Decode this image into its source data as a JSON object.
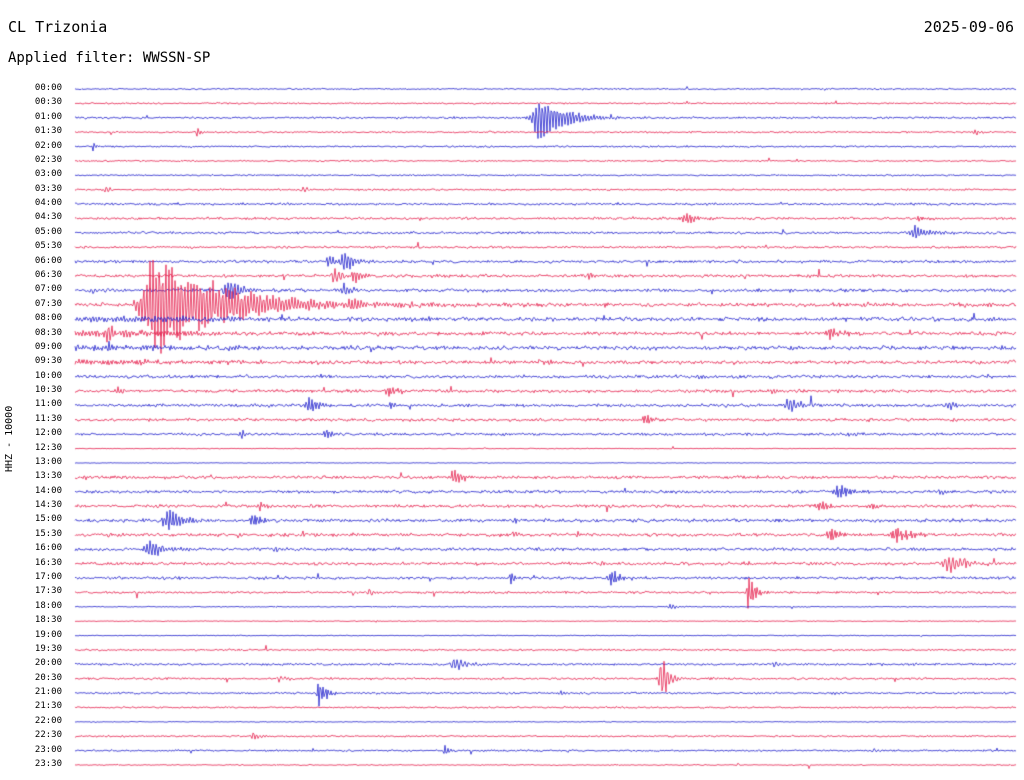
{
  "header": {
    "station": "CL Trizonia",
    "date": "2025-09-06",
    "filter_label": "Applied filter: WWSSN-SP"
  },
  "axis": {
    "y_label": "HHZ - 10000"
  },
  "chart_data": {
    "type": "seismogram-helicorder",
    "station": "CL Trizonia",
    "channel": "HHZ",
    "gain_scale": 10000,
    "date": "2025-09-06",
    "filter": "WWSSN-SP",
    "minutes_per_line": 30,
    "first_line": "00:00",
    "last_line": "23:30",
    "colors": {
      "blue": "#2020cc",
      "red": "#e4204c"
    },
    "rows": [
      {
        "t": "00:00",
        "c": "b",
        "n": 0.7,
        "ev": []
      },
      {
        "t": "00:30",
        "c": "r",
        "n": 0.7,
        "ev": []
      },
      {
        "t": "01:00",
        "c": "b",
        "n": 0.9,
        "ev": [
          [
            14.8,
            26,
            5,
            26
          ],
          [
            17.1,
            4,
            3,
            10
          ]
        ]
      },
      {
        "t": "01:30",
        "c": "r",
        "n": 0.8,
        "ev": [
          [
            3.9,
            6,
            1.5,
            3
          ],
          [
            28.7,
            4,
            2,
            6
          ]
        ]
      },
      {
        "t": "02:00",
        "c": "b",
        "n": 0.8,
        "ev": [
          [
            0.6,
            5,
            1.5,
            3
          ]
        ]
      },
      {
        "t": "02:30",
        "c": "r",
        "n": 0.7,
        "ev": []
      },
      {
        "t": "03:00",
        "c": "b",
        "n": 0.7,
        "ev": []
      },
      {
        "t": "03:30",
        "c": "r",
        "n": 0.8,
        "ev": [
          [
            1.0,
            6,
            1.5,
            3
          ],
          [
            7.3,
            3,
            2,
            5
          ]
        ]
      },
      {
        "t": "04:00",
        "c": "b",
        "n": 1.0,
        "ev": []
      },
      {
        "t": "04:30",
        "c": "r",
        "n": 1.1,
        "ev": [
          [
            19.5,
            7,
            4,
            12
          ],
          [
            26.9,
            3,
            2,
            6
          ]
        ]
      },
      {
        "t": "05:00",
        "c": "b",
        "n": 1.1,
        "ev": [
          [
            26.8,
            8,
            4,
            12
          ]
        ]
      },
      {
        "t": "05:30",
        "c": "r",
        "n": 1.0,
        "ev": []
      },
      {
        "t": "06:00",
        "c": "b",
        "n": 1.3,
        "ev": [
          [
            8.1,
            8,
            3,
            6
          ],
          [
            8.6,
            12,
            3,
            10
          ]
        ]
      },
      {
        "t": "06:30",
        "c": "r",
        "n": 1.4,
        "ev": [
          [
            8.3,
            10,
            3,
            8
          ],
          [
            8.9,
            8,
            3,
            8
          ],
          [
            16.4,
            3,
            2,
            5
          ]
        ]
      },
      {
        "t": "07:00",
        "c": "b",
        "n": 1.5,
        "ev": [
          [
            4.9,
            12,
            4,
            14
          ],
          [
            8.6,
            6,
            3,
            8
          ],
          [
            0.6,
            3,
            2,
            5
          ],
          [
            22.8,
            2.5,
            2,
            5
          ]
        ]
      },
      {
        "t": "07:30",
        "c": "r",
        "n": 1.8,
        "ev": [
          [
            2.6,
            55,
            10,
            70
          ],
          [
            8.8,
            5,
            3,
            8
          ]
        ]
      },
      {
        "t": "08:00",
        "c": "b",
        "n": 1.8,
        "ev": [
          [
            1.5,
            3,
            40,
            120
          ],
          [
            4.9,
            4,
            3,
            8
          ],
          [
            11.3,
            3,
            3,
            8
          ]
        ]
      },
      {
        "t": "08:30",
        "c": "r",
        "n": 1.6,
        "ev": [
          [
            1.1,
            8,
            4,
            10
          ],
          [
            24.1,
            7,
            4,
            12
          ],
          [
            12.9,
            3,
            2,
            6
          ],
          [
            1.0,
            4,
            30,
            90
          ]
        ]
      },
      {
        "t": "09:00",
        "c": "b",
        "n": 1.8,
        "ev": [
          [
            0.6,
            5,
            3,
            10
          ],
          [
            0.8,
            3,
            30,
            80
          ]
        ]
      },
      {
        "t": "09:30",
        "c": "r",
        "n": 1.6,
        "ev": [
          [
            15.0,
            3,
            2,
            6
          ],
          [
            0.5,
            2.5,
            30,
            120
          ]
        ]
      },
      {
        "t": "10:00",
        "c": "b",
        "n": 1.4,
        "ev": [
          [
            19.9,
            3,
            2,
            6
          ]
        ]
      },
      {
        "t": "10:30",
        "c": "r",
        "n": 1.4,
        "ev": [
          [
            1.4,
            6,
            1.5,
            3
          ],
          [
            10.0,
            6,
            3,
            10
          ],
          [
            22.2,
            3,
            2,
            6
          ]
        ]
      },
      {
        "t": "11:00",
        "c": "b",
        "n": 1.4,
        "ev": [
          [
            7.5,
            9,
            3,
            10
          ],
          [
            22.8,
            9,
            4,
            10
          ],
          [
            27.9,
            5,
            2,
            6
          ],
          [
            10.1,
            4,
            2,
            6
          ]
        ]
      },
      {
        "t": "11:30",
        "c": "r",
        "n": 1.3,
        "ev": [
          [
            18.2,
            6,
            3,
            8
          ]
        ]
      },
      {
        "t": "12:00",
        "c": "b",
        "n": 1.2,
        "ev": [
          [
            5.3,
            6,
            1.5,
            4
          ],
          [
            8.0,
            6,
            2,
            6
          ],
          [
            24.7,
            3,
            2,
            5
          ]
        ]
      },
      {
        "t": "12:30",
        "c": "r",
        "n": 0.35,
        "ev": []
      },
      {
        "t": "13:00",
        "c": "b",
        "n": 0.35,
        "ev": []
      },
      {
        "t": "13:30",
        "c": "r",
        "n": 1.3,
        "ev": [
          [
            12.1,
            9,
            3,
            10
          ],
          [
            0.3,
            3,
            2,
            5
          ]
        ]
      },
      {
        "t": "14:00",
        "c": "b",
        "n": 1.3,
        "ev": [
          [
            24.4,
            9,
            4,
            12
          ],
          [
            27.6,
            3,
            2,
            6
          ]
        ]
      },
      {
        "t": "14:30",
        "c": "r",
        "n": 1.4,
        "ev": [
          [
            5.9,
            5,
            2,
            5
          ],
          [
            23.8,
            6,
            4,
            10
          ],
          [
            25.4,
            4,
            3,
            8
          ]
        ]
      },
      {
        "t": "15:00",
        "c": "b",
        "n": 1.5,
        "ev": [
          [
            3.0,
            14,
            4,
            14
          ],
          [
            5.7,
            8,
            3,
            8
          ],
          [
            14.0,
            4,
            2,
            5
          ]
        ]
      },
      {
        "t": "15:30",
        "c": "r",
        "n": 1.5,
        "ev": [
          [
            24.1,
            8,
            4,
            10
          ],
          [
            26.2,
            9,
            4,
            16
          ],
          [
            16.0,
            5,
            1.5,
            4
          ],
          [
            14.0,
            3,
            2,
            5
          ]
        ]
      },
      {
        "t": "16:00",
        "c": "b",
        "n": 1.4,
        "ev": [
          [
            2.4,
            11,
            4,
            12
          ],
          [
            6.4,
            3,
            2,
            5
          ]
        ]
      },
      {
        "t": "16:30",
        "c": "r",
        "n": 1.4,
        "ev": [
          [
            27.9,
            11,
            4,
            14
          ],
          [
            21.4,
            3,
            2,
            6
          ],
          [
            16.8,
            2.5,
            3,
            8
          ]
        ]
      },
      {
        "t": "17:00",
        "c": "b",
        "n": 1.2,
        "ev": [
          [
            13.9,
            11,
            1.5,
            4
          ],
          [
            17.1,
            9,
            3,
            10
          ],
          [
            15.5,
            3,
            2,
            5
          ]
        ]
      },
      {
        "t": "17:30",
        "c": "r",
        "n": 1.0,
        "ev": [
          [
            9.4,
            7,
            1.5,
            3
          ],
          [
            21.5,
            22,
            2,
            6
          ]
        ]
      },
      {
        "t": "18:00",
        "c": "b",
        "n": 0.5,
        "ev": [
          [
            19.0,
            4,
            2,
            6
          ]
        ]
      },
      {
        "t": "18:30",
        "c": "r",
        "n": 0.4,
        "ev": []
      },
      {
        "t": "19:00",
        "c": "b",
        "n": 0.4,
        "ev": []
      },
      {
        "t": "19:30",
        "c": "r",
        "n": 0.8,
        "ev": []
      },
      {
        "t": "20:00",
        "c": "b",
        "n": 1.0,
        "ev": [
          [
            12.1,
            8,
            3,
            10
          ],
          [
            22.3,
            3,
            2,
            6
          ]
        ]
      },
      {
        "t": "20:30",
        "c": "r",
        "n": 1.0,
        "ev": [
          [
            18.7,
            28,
            2,
            7
          ],
          [
            6.5,
            4,
            2,
            6
          ]
        ]
      },
      {
        "t": "21:00",
        "c": "b",
        "n": 0.9,
        "ev": [
          [
            7.8,
            16,
            2,
            7
          ],
          [
            15.5,
            3,
            2,
            5
          ]
        ]
      },
      {
        "t": "21:30",
        "c": "r",
        "n": 0.8,
        "ev": []
      },
      {
        "t": "22:00",
        "c": "b",
        "n": 0.4,
        "ev": []
      },
      {
        "t": "22:30",
        "c": "r",
        "n": 0.8,
        "ev": [
          [
            5.7,
            5,
            2,
            6
          ]
        ]
      },
      {
        "t": "23:00",
        "c": "b",
        "n": 0.8,
        "ev": [
          [
            11.8,
            7,
            1.5,
            4
          ],
          [
            25.5,
            2.5,
            2,
            5
          ]
        ]
      },
      {
        "t": "23:30",
        "c": "r",
        "n": 0.5,
        "ev": []
      }
    ]
  }
}
